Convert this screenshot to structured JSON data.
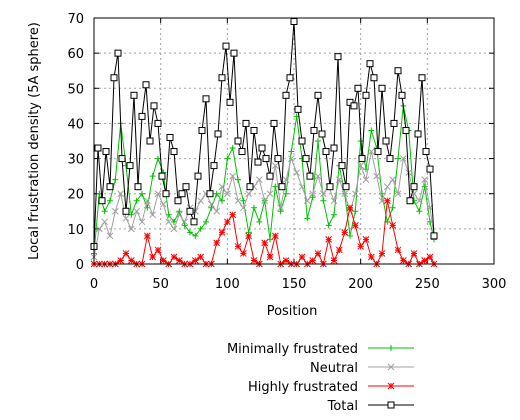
{
  "chart_data": {
    "type": "line",
    "title": "",
    "xlabel": "Position",
    "ylabel": "Local frustration density (5A sphere)",
    "xlim": [
      0,
      300
    ],
    "ylim": [
      0,
      70
    ],
    "x_ticks": [
      "0",
      "50",
      "100",
      "150",
      "200",
      "250",
      "300"
    ],
    "y_ticks": [
      "0",
      "10",
      "20",
      "30",
      "40",
      "50",
      "60",
      "70"
    ],
    "grid": true,
    "legend_position": "below",
    "series": [
      {
        "name": "Minimally frustrated",
        "color": "#00c000",
        "marker": "plus",
        "x": [
          0,
          4,
          8,
          12,
          16,
          20,
          24,
          28,
          32,
          36,
          40,
          44,
          48,
          52,
          56,
          60,
          64,
          68,
          72,
          76,
          80,
          84,
          88,
          92,
          96,
          100,
          104,
          108,
          112,
          116,
          120,
          124,
          128,
          132,
          136,
          140,
          144,
          148,
          152,
          156,
          160,
          164,
          168,
          172,
          176,
          180,
          184,
          188,
          192,
          196,
          200,
          204,
          208,
          212,
          216,
          220,
          224,
          228,
          232,
          236,
          240,
          244,
          248,
          252,
          255
        ],
        "y": [
          3,
          20,
          15,
          18,
          24,
          40,
          28,
          14,
          18,
          20,
          16,
          25,
          30,
          26,
          14,
          12,
          15,
          11,
          9,
          8,
          10,
          12,
          16,
          20,
          18,
          30,
          33,
          24,
          18,
          9,
          16,
          12,
          18,
          7,
          22,
          15,
          20,
          32,
          42,
          30,
          13,
          19,
          35,
          18,
          11,
          14,
          28,
          20,
          8,
          15,
          35,
          27,
          38,
          33,
          20,
          12,
          16,
          30,
          45,
          38,
          18,
          15,
          22,
          12,
          7
        ]
      },
      {
        "name": "Neutral",
        "color": "#a0a0a0",
        "marker": "cross",
        "x": [
          0,
          4,
          8,
          12,
          16,
          20,
          24,
          28,
          32,
          36,
          40,
          44,
          48,
          52,
          56,
          60,
          64,
          68,
          72,
          76,
          80,
          84,
          88,
          92,
          96,
          100,
          104,
          108,
          112,
          116,
          120,
          124,
          128,
          132,
          136,
          140,
          144,
          148,
          152,
          156,
          160,
          164,
          168,
          172,
          176,
          180,
          184,
          188,
          192,
          196,
          200,
          204,
          208,
          212,
          216,
          220,
          224,
          228,
          232,
          236,
          240,
          244,
          248,
          252,
          255
        ],
        "y": [
          2,
          10,
          12,
          8,
          15,
          20,
          13,
          10,
          15,
          12,
          18,
          14,
          20,
          17,
          12,
          10,
          14,
          12,
          16,
          15,
          18,
          20,
          17,
          15,
          22,
          20,
          25,
          18,
          16,
          20,
          22,
          24,
          18,
          20,
          28,
          16,
          24,
          30,
          26,
          22,
          18,
          20,
          25,
          20,
          22,
          18,
          24,
          20,
          15,
          20,
          28,
          24,
          32,
          25,
          18,
          22,
          24,
          20,
          30,
          26,
          20,
          18,
          24,
          16,
          8
        ]
      },
      {
        "name": "Highly frustrated",
        "color": "#ff0000",
        "marker": "star",
        "x": [
          0,
          4,
          8,
          12,
          16,
          20,
          24,
          28,
          32,
          36,
          40,
          44,
          48,
          52,
          56,
          60,
          64,
          68,
          72,
          76,
          80,
          84,
          88,
          92,
          96,
          100,
          104,
          108,
          112,
          116,
          120,
          124,
          128,
          132,
          136,
          140,
          144,
          148,
          152,
          156,
          160,
          164,
          168,
          172,
          176,
          180,
          184,
          188,
          192,
          196,
          200,
          204,
          208,
          212,
          216,
          220,
          224,
          228,
          232,
          236,
          240,
          244,
          248,
          252,
          255
        ],
        "y": [
          0,
          0,
          0,
          0,
          0,
          1,
          3,
          1,
          0,
          0,
          8,
          2,
          4,
          1,
          0,
          2,
          1,
          0,
          0,
          1,
          2,
          0,
          0,
          6,
          9,
          12,
          14,
          5,
          3,
          8,
          1,
          0,
          6,
          2,
          8,
          0,
          1,
          0,
          0,
          2,
          0,
          1,
          3,
          0,
          7,
          1,
          4,
          9,
          16,
          11,
          5,
          7,
          2,
          0,
          3,
          18,
          11,
          4,
          1,
          0,
          3,
          0,
          1,
          2,
          0
        ]
      },
      {
        "name": "Total",
        "color": "#000000",
        "marker": "square",
        "x": [
          0,
          3,
          6,
          9,
          12,
          15,
          18,
          21,
          24,
          27,
          30,
          33,
          36,
          39,
          42,
          45,
          48,
          51,
          54,
          57,
          60,
          63,
          66,
          69,
          72,
          75,
          78,
          81,
          84,
          87,
          90,
          93,
          96,
          99,
          102,
          105,
          108,
          111,
          114,
          117,
          120,
          123,
          126,
          129,
          132,
          135,
          138,
          141,
          144,
          147,
          150,
          153,
          156,
          159,
          162,
          165,
          168,
          171,
          174,
          177,
          180,
          183,
          186,
          189,
          192,
          195,
          198,
          201,
          204,
          207,
          210,
          213,
          216,
          219,
          222,
          225,
          228,
          231,
          234,
          237,
          240,
          243,
          246,
          249,
          252,
          255
        ],
        "y": [
          5,
          33,
          18,
          32,
          22,
          53,
          60,
          30,
          15,
          28,
          48,
          22,
          42,
          51,
          35,
          45,
          40,
          25,
          20,
          36,
          32,
          18,
          20,
          22,
          15,
          12,
          25,
          38,
          47,
          20,
          28,
          37,
          53,
          62,
          46,
          60,
          35,
          32,
          40,
          22,
          38,
          29,
          33,
          30,
          25,
          40,
          30,
          22,
          48,
          53,
          69,
          44,
          35,
          30,
          25,
          38,
          48,
          37,
          32,
          22,
          33,
          59,
          28,
          22,
          46,
          45,
          50,
          30,
          48,
          57,
          53,
          32,
          50,
          35,
          30,
          40,
          55,
          48,
          38,
          18,
          22,
          37,
          53,
          32,
          27,
          8
        ]
      }
    ]
  }
}
